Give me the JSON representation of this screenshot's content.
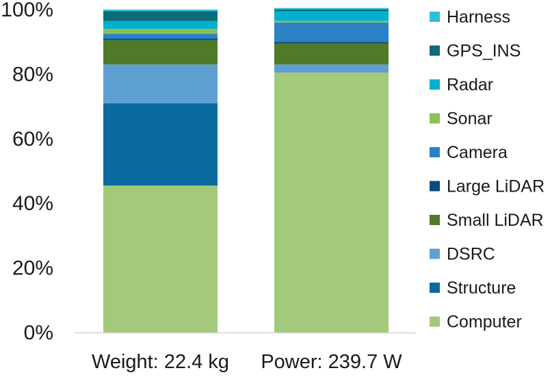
{
  "chart_data": {
    "type": "bar",
    "stacked": true,
    "orientation": "vertical",
    "categories": [
      "Weight: 22.4 kg",
      "Power: 239.7 W"
    ],
    "ylim": [
      0,
      100
    ],
    "yticks": [
      "0%",
      "20%",
      "40%",
      "60%",
      "80%",
      "100%"
    ],
    "ytick_values": [
      0,
      20,
      40,
      60,
      80,
      100
    ],
    "grid": false,
    "legend_position": "right",
    "series": [
      {
        "name": "Computer",
        "color": "#A3C97A",
        "values": [
          45.5,
          80.5
        ]
      },
      {
        "name": "Structure",
        "color": "#0B6AA0",
        "values": [
          25.5,
          0
        ]
      },
      {
        "name": "DSRC",
        "color": "#5FA0D2",
        "values": [
          12.0,
          2.5
        ]
      },
      {
        "name": "Small LiDAR",
        "color": "#4F7A28",
        "values": [
          7.5,
          6.5
        ]
      },
      {
        "name": "Large LiDAR",
        "color": "#0E4A7A",
        "values": [
          0.5,
          0.5
        ]
      },
      {
        "name": "Camera",
        "color": "#2B83C7",
        "values": [
          1.5,
          6.0
        ]
      },
      {
        "name": "Sonar",
        "color": "#8DC153",
        "values": [
          1.5,
          0.5
        ]
      },
      {
        "name": "Radar",
        "color": "#00B0CC",
        "values": [
          2.5,
          3.0
        ]
      },
      {
        "name": "GPS_INS",
        "color": "#0B6B78",
        "values": [
          3.0,
          0.5
        ]
      },
      {
        "name": "Harness",
        "color": "#2DC0D8",
        "values": [
          0.5,
          0.5
        ]
      }
    ]
  }
}
